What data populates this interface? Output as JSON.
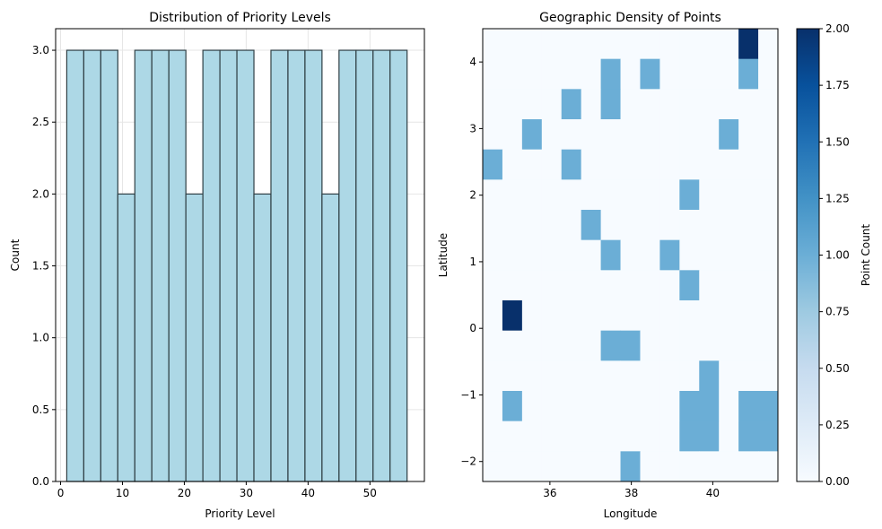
{
  "chart_data": [
    {
      "type": "bar",
      "title": "Distribution of Priority Levels",
      "xlabel": "Priority Level",
      "ylabel": "Count",
      "xlim": [
        -0.8,
        58.8
      ],
      "ylim": [
        0,
        3.15
      ],
      "xticks": [
        0,
        10,
        20,
        30,
        40,
        50
      ],
      "yticks": [
        0.0,
        0.5,
        1.0,
        1.5,
        2.0,
        2.5,
        3.0
      ],
      "ytick_labels": [
        "0.0",
        "0.5",
        "1.0",
        "1.5",
        "2.0",
        "2.5",
        "3.0"
      ],
      "grid": true,
      "bin_edges": [
        1.0,
        3.75,
        6.5,
        9.25,
        12.0,
        14.75,
        17.5,
        20.25,
        23.0,
        25.75,
        28.5,
        31.25,
        34.0,
        36.75,
        39.5,
        42.25,
        45.0,
        47.75,
        50.5,
        53.25,
        56.0
      ],
      "values": [
        3,
        3,
        3,
        2,
        3,
        3,
        3,
        2,
        3,
        3,
        3,
        2,
        3,
        3,
        3,
        2,
        3,
        3,
        3,
        3
      ],
      "bar_color": "#add8e6",
      "edge_color": "#2f3f44"
    },
    {
      "type": "heatmap",
      "title": "Geographic Density of Points",
      "xlabel": "Longitude",
      "ylabel": "Latitude",
      "xlim": [
        34.35,
        41.6
      ],
      "ylim": [
        -2.3,
        4.5
      ],
      "xticks": [
        36,
        38,
        40
      ],
      "yticks": [
        -2,
        -1,
        0,
        1,
        2,
        3,
        4
      ],
      "nx": 15,
      "ny": 15,
      "cmap": "Blues",
      "colorbar": {
        "label": "Point Count",
        "min": 0,
        "max": 2,
        "ticks": [
          0.0,
          0.25,
          0.5,
          0.75,
          1.0,
          1.25,
          1.5,
          1.75,
          2.0
        ],
        "tick_labels": [
          "0.00",
          "0.25",
          "0.50",
          "0.75",
          "1.00",
          "1.25",
          "1.50",
          "1.75",
          "2.00"
        ]
      },
      "counts": [
        [
          0,
          0,
          0,
          0,
          0,
          0,
          0,
          0,
          0,
          0,
          0,
          0,
          0,
          2,
          0
        ],
        [
          0,
          0,
          0,
          0,
          0,
          0,
          1,
          0,
          1,
          0,
          0,
          0,
          0,
          1,
          0
        ],
        [
          0,
          0,
          0,
          0,
          1,
          0,
          1,
          0,
          0,
          0,
          0,
          0,
          0,
          0,
          0
        ],
        [
          0,
          0,
          1,
          0,
          0,
          0,
          0,
          0,
          0,
          0,
          0,
          0,
          1,
          0,
          0
        ],
        [
          1,
          0,
          0,
          0,
          1,
          0,
          0,
          0,
          0,
          0,
          0,
          0,
          0,
          0,
          0
        ],
        [
          0,
          0,
          0,
          0,
          0,
          0,
          0,
          0,
          0,
          0,
          1,
          0,
          0,
          0,
          0
        ],
        [
          0,
          0,
          0,
          0,
          0,
          1,
          0,
          0,
          0,
          0,
          0,
          0,
          0,
          0,
          0
        ],
        [
          0,
          0,
          0,
          0,
          0,
          0,
          1,
          0,
          0,
          1,
          0,
          0,
          0,
          0,
          0
        ],
        [
          0,
          0,
          0,
          0,
          0,
          0,
          0,
          0,
          0,
          0,
          1,
          0,
          0,
          0,
          0
        ],
        [
          0,
          2,
          0,
          0,
          0,
          0,
          0,
          0,
          0,
          0,
          0,
          0,
          0,
          0,
          0
        ],
        [
          0,
          0,
          0,
          0,
          0,
          0,
          1,
          1,
          0,
          0,
          0,
          0,
          0,
          0,
          0
        ],
        [
          0,
          0,
          0,
          0,
          0,
          0,
          0,
          0,
          0,
          0,
          0,
          1,
          0,
          0,
          0
        ],
        [
          0,
          1,
          0,
          0,
          0,
          0,
          0,
          0,
          0,
          0,
          1,
          1,
          0,
          1,
          1
        ],
        [
          0,
          0,
          0,
          0,
          0,
          0,
          0,
          0,
          0,
          0,
          1,
          1,
          0,
          1,
          1
        ],
        [
          0,
          0,
          0,
          0,
          0,
          0,
          0,
          1,
          0,
          0,
          0,
          0,
          0,
          0,
          0
        ]
      ]
    }
  ]
}
